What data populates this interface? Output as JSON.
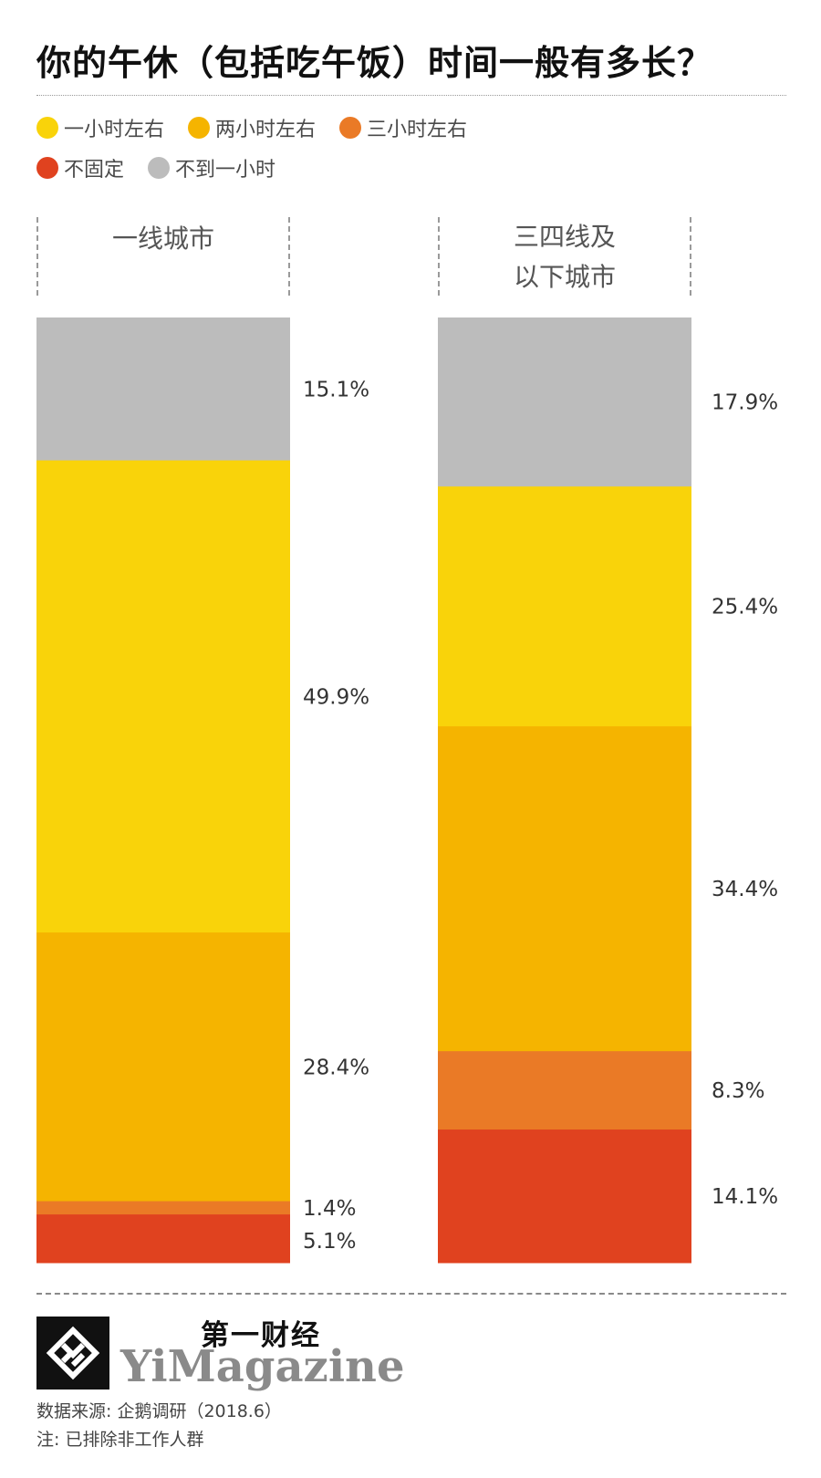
{
  "title": "你的午休（包括吃午饭）时间一般有多长？",
  "legend": {
    "row1": [
      {
        "label": "一小时左右",
        "color": "#F9D30A"
      },
      {
        "label": "两小时左右",
        "color": "#F5B400"
      },
      {
        "label": "三小时左右",
        "color": "#EA7A26"
      }
    ],
    "row2": [
      {
        "label": "不固定",
        "color": "#E0421F"
      },
      {
        "label": "不到一小时",
        "color": "#BCBCBC"
      }
    ]
  },
  "columns": [
    {
      "label": "一线城市"
    },
    {
      "label": "三四线及\n以下城市"
    }
  ],
  "chart_data": {
    "type": "bar",
    "stacked": true,
    "unit": "%",
    "categories": [
      "一线城市",
      "三四线及以下城市"
    ],
    "series": [
      {
        "name": "不到一小时",
        "color": "#BCBCBC",
        "values": [
          15.1,
          17.9
        ],
        "labels": [
          "15.1%",
          "17.9%"
        ]
      },
      {
        "name": "一小时左右",
        "color": "#F9D30A",
        "values": [
          49.9,
          25.4
        ],
        "labels": [
          "49.9%",
          "25.4%"
        ]
      },
      {
        "name": "两小时左右",
        "color": "#F5B400",
        "values": [
          28.4,
          34.4
        ],
        "labels": [
          "28.4%",
          "34.4%"
        ]
      },
      {
        "name": "三小时左右",
        "color": "#EA7A26",
        "values": [
          1.4,
          8.3
        ],
        "labels": [
          "1.4%",
          "8.3%"
        ]
      },
      {
        "name": "不固定",
        "color": "#E0421F",
        "values": [
          5.1,
          14.1
        ],
        "labels": [
          "5.1%",
          "14.1%"
        ]
      }
    ]
  },
  "footer": {
    "brand_cn": "第一财经",
    "brand_en": "YiMagazine",
    "logo_icon": "yimagazine-logo-icon",
    "source": "数据来源: 企鹅调研（2018.6）",
    "note": "注: 已排除非工作人群"
  }
}
